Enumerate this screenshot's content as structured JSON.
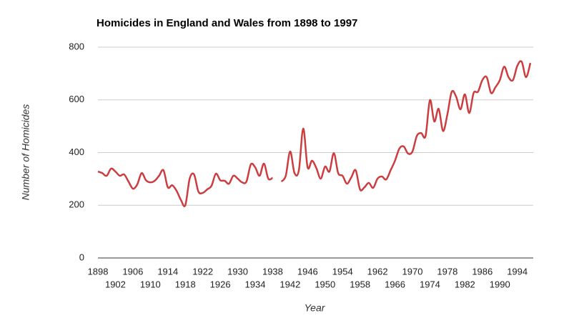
{
  "chart_data": {
    "type": "line",
    "title": "Homicides in England and Wales from 1898 to 1997",
    "x_label": "Year",
    "y_label": "Number of Homicides",
    "x": [
      1898,
      1899,
      1900,
      1901,
      1902,
      1903,
      1904,
      1905,
      1906,
      1907,
      1908,
      1909,
      1910,
      1911,
      1912,
      1913,
      1914,
      1915,
      1916,
      1917,
      1918,
      1919,
      1920,
      1921,
      1922,
      1923,
      1924,
      1925,
      1926,
      1927,
      1928,
      1929,
      1930,
      1931,
      1932,
      1933,
      1934,
      1935,
      1936,
      1937,
      1938,
      1939,
      1940,
      1941,
      1942,
      1943,
      1944,
      1945,
      1946,
      1947,
      1948,
      1949,
      1950,
      1951,
      1952,
      1953,
      1954,
      1955,
      1956,
      1957,
      1958,
      1959,
      1960,
      1961,
      1962,
      1963,
      1964,
      1965,
      1966,
      1967,
      1968,
      1969,
      1970,
      1971,
      1972,
      1973,
      1974,
      1975,
      1976,
      1977,
      1978,
      1979,
      1980,
      1981,
      1982,
      1983,
      1984,
      1985,
      1986,
      1987,
      1988,
      1989,
      1990,
      1991,
      1992,
      1993,
      1994,
      1995,
      1996,
      1997
    ],
    "series": [
      {
        "name": "Number of Homicides",
        "color": "#cc3d40",
        "values": [
          328,
          322,
          312,
          339,
          328,
          312,
          317,
          290,
          263,
          279,
          322,
          295,
          287,
          293,
          312,
          333,
          268,
          276,
          255,
          220,
          200,
          301,
          317,
          252,
          247,
          260,
          274,
          320,
          295,
          293,
          282,
          312,
          301,
          287,
          290,
          355,
          344,
          312,
          358,
          301,
          304,
          null,
          290,
          312,
          404,
          322,
          333,
          491,
          344,
          369,
          341,
          301,
          347,
          328,
          398,
          322,
          312,
          282,
          306,
          333,
          260,
          268,
          285,
          266,
          301,
          309,
          298,
          333,
          369,
          415,
          423,
          396,
          404,
          463,
          474,
          463,
          599,
          518,
          566,
          482,
          545,
          631,
          612,
          564,
          621,
          550,
          626,
          631,
          675,
          686,
          626,
          648,
          675,
          726,
          686,
          675,
          729,
          745,
          686,
          740
        ]
      }
    ],
    "xlim": [
      1898,
      1997
    ],
    "xticks": [
      1898,
      1902,
      1906,
      1910,
      1914,
      1918,
      1922,
      1926,
      1930,
      1934,
      1938,
      1942,
      1946,
      1950,
      1954,
      1958,
      1962,
      1966,
      1970,
      1974,
      1978,
      1982,
      1986,
      1990,
      1994
    ],
    "ylim": [
      0,
      800
    ],
    "yticks": [
      0,
      200,
      400,
      600,
      800
    ],
    "grid": true
  }
}
